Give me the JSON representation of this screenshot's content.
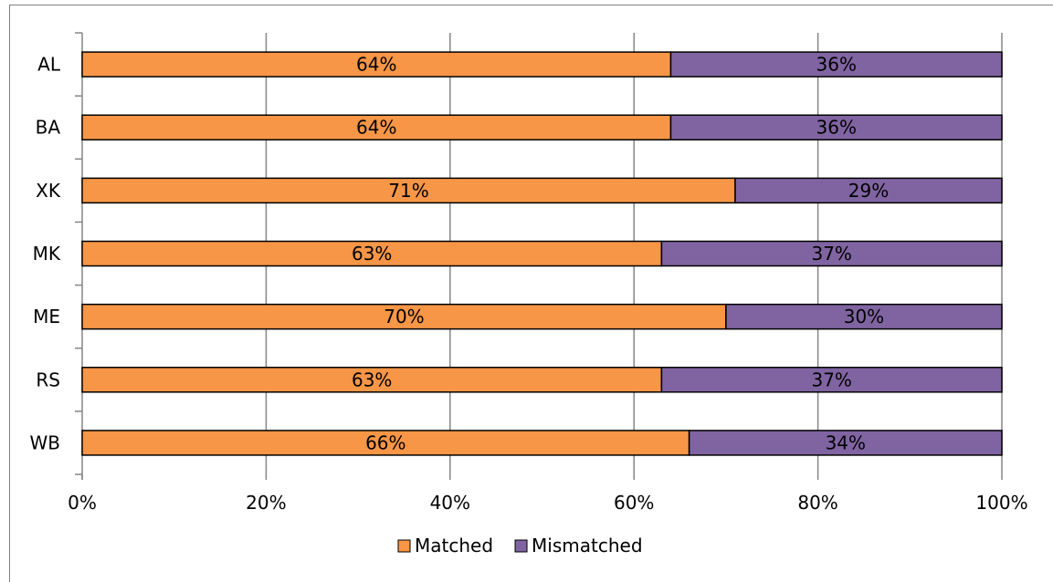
{
  "chart_data": {
    "type": "bar",
    "orientation": "horizontal",
    "stacked": true,
    "percent": true,
    "categories": [
      "AL",
      "BA",
      "XK",
      "MK",
      "ME",
      "RS",
      "WB"
    ],
    "series": [
      {
        "name": "Matched",
        "values": [
          64,
          64,
          71,
          63,
          70,
          63,
          66
        ],
        "color": "#F79646"
      },
      {
        "name": "Mismatched",
        "values": [
          36,
          36,
          29,
          37,
          30,
          37,
          34
        ],
        "color": "#8064A2"
      }
    ],
    "xlim": [
      0,
      100
    ],
    "x_ticks": [
      "0%",
      "20%",
      "40%",
      "60%",
      "80%",
      "100%"
    ],
    "data_labels": [
      [
        "64%",
        "36%"
      ],
      [
        "64%",
        "36%"
      ],
      [
        "71%",
        "29%"
      ],
      [
        "63%",
        "37%"
      ],
      [
        "70%",
        "30%"
      ],
      [
        "63%",
        "37%"
      ],
      [
        "66%",
        "34%"
      ]
    ],
    "grid": "vertical",
    "legend": "bottom"
  }
}
